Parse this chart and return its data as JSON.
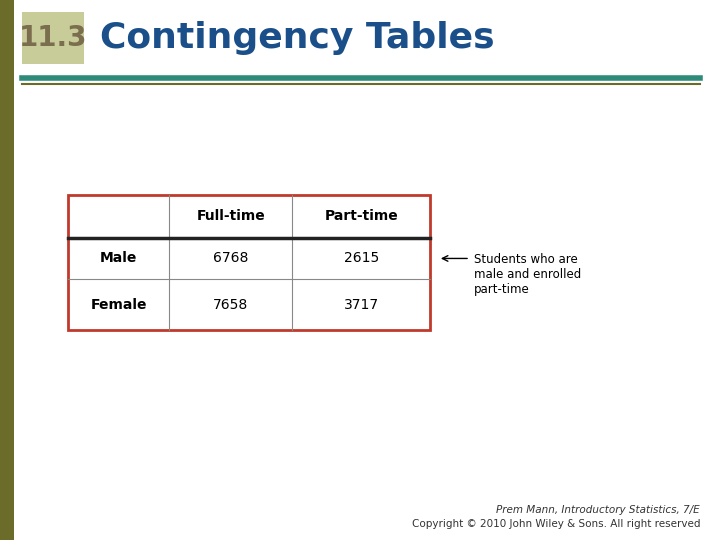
{
  "title_number": "11.3",
  "title_text": "Contingency Tables",
  "title_number_color": "#7B6E4E",
  "title_text_color": "#1B4F8A",
  "title_bg_color": "#C8CC99",
  "divider_color_teal": "#2E8B7A",
  "divider_color_olive": "#6B6B2A",
  "background_color": "#FFFFFF",
  "left_bar_color": "#6B6B2A",
  "table_border_color": "#C0392B",
  "col_headers": [
    "Full-time",
    "Part-time"
  ],
  "row_headers": [
    "Male",
    "Female"
  ],
  "data": [
    [
      6768,
      2615
    ],
    [
      7658,
      3717
    ]
  ],
  "annotation_text": "Students who are\nmale and enrolled\npart-time",
  "footer_line1": "Prem Mann, Introductory Statistics, 7/E",
  "footer_line2": "Copyright © 2010 John Wiley & Sons. All right reserved"
}
